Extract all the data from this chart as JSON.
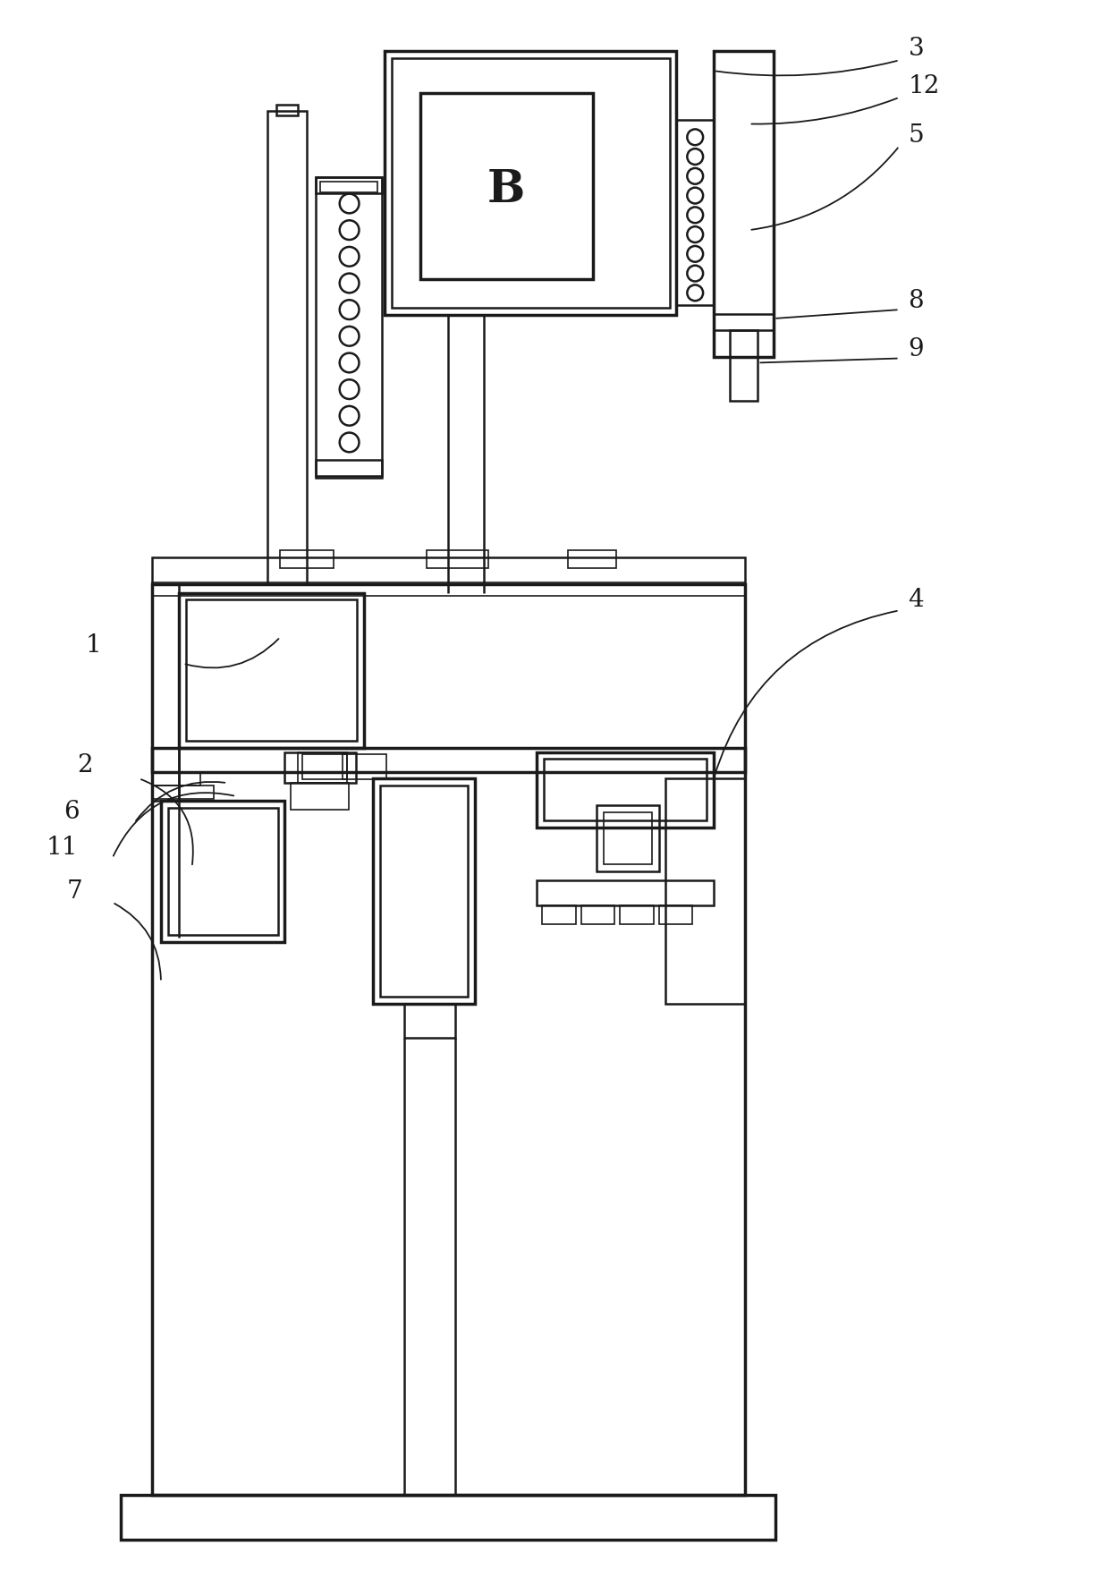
{
  "bg_color": "#ffffff",
  "line_color": "#1a1a1a",
  "lw_thin": 1.2,
  "lw_med": 1.8,
  "lw_thick": 2.5,
  "fig_width": 12.4,
  "fig_height": 17.75,
  "dpi": 100
}
